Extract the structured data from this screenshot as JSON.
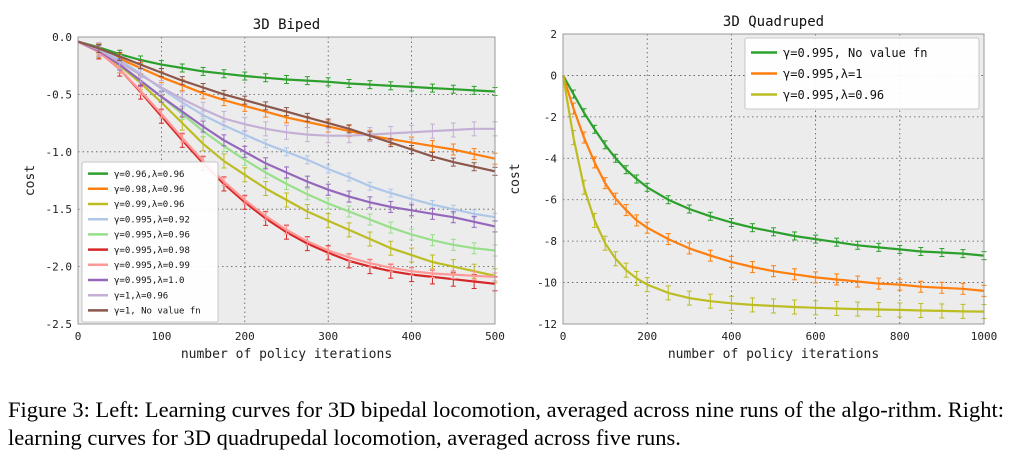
{
  "chart_data": [
    {
      "type": "line",
      "title": "3D Biped",
      "xlabel": "number of policy iterations",
      "ylabel": "cost",
      "xlim": [
        0,
        500
      ],
      "ylim": [
        -2.5,
        0.0
      ],
      "xticks": [
        "0",
        "100",
        "200",
        "300",
        "400",
        "500"
      ],
      "yticks": [
        "0.0",
        "-0.5",
        "-1.0",
        "-1.5",
        "-2.0",
        "-2.5"
      ],
      "grid": true,
      "legend_position": "lower-left",
      "x": [
        0,
        25,
        50,
        75,
        100,
        125,
        150,
        175,
        200,
        225,
        250,
        275,
        300,
        325,
        350,
        375,
        400,
        425,
        450,
        475,
        500
      ],
      "series": [
        {
          "name": "γ=0.96,λ=0.96",
          "color": "#2ca02c",
          "values": [
            -0.04,
            -0.09,
            -0.15,
            -0.2,
            -0.24,
            -0.27,
            -0.3,
            -0.32,
            -0.34,
            -0.355,
            -0.37,
            -0.38,
            -0.39,
            -0.405,
            -0.415,
            -0.425,
            -0.435,
            -0.445,
            -0.455,
            -0.465,
            -0.475
          ]
        },
        {
          "name": "γ=0.98,λ=0.96",
          "color": "#ff7f0e",
          "values": [
            -0.04,
            -0.1,
            -0.19,
            -0.27,
            -0.35,
            -0.42,
            -0.49,
            -0.55,
            -0.6,
            -0.65,
            -0.7,
            -0.74,
            -0.78,
            -0.82,
            -0.86,
            -0.89,
            -0.92,
            -0.95,
            -0.98,
            -1.02,
            -1.06
          ]
        },
        {
          "name": "γ=0.99,λ=0.96",
          "color": "#bcbd22",
          "values": [
            -0.04,
            -0.12,
            -0.25,
            -0.4,
            -0.57,
            -0.75,
            -0.93,
            -1.08,
            -1.2,
            -1.32,
            -1.42,
            -1.52,
            -1.6,
            -1.68,
            -1.76,
            -1.84,
            -1.9,
            -1.96,
            -2.0,
            -2.04,
            -2.08
          ]
        },
        {
          "name": "γ=0.995,λ=0.92",
          "color": "#aec7e8",
          "values": [
            -0.04,
            -0.1,
            -0.2,
            -0.32,
            -0.45,
            -0.57,
            -0.68,
            -0.77,
            -0.85,
            -0.93,
            -1.0,
            -1.07,
            -1.15,
            -1.22,
            -1.3,
            -1.36,
            -1.41,
            -1.46,
            -1.5,
            -1.54,
            -1.57
          ]
        },
        {
          "name": "γ=0.995,λ=0.96",
          "color": "#98df8a",
          "values": [
            -0.04,
            -0.12,
            -0.24,
            -0.38,
            -0.52,
            -0.67,
            -0.82,
            -0.95,
            -1.07,
            -1.18,
            -1.28,
            -1.37,
            -1.45,
            -1.52,
            -1.59,
            -1.66,
            -1.72,
            -1.77,
            -1.81,
            -1.84,
            -1.86
          ]
        },
        {
          "name": "γ=0.995,λ=0.98",
          "color": "#d62728",
          "values": [
            -0.04,
            -0.13,
            -0.28,
            -0.48,
            -0.69,
            -0.9,
            -1.1,
            -1.28,
            -1.44,
            -1.58,
            -1.7,
            -1.8,
            -1.88,
            -1.95,
            -2.0,
            -2.04,
            -2.07,
            -2.09,
            -2.11,
            -2.13,
            -2.15
          ]
        },
        {
          "name": "γ=0.995,λ=0.99",
          "color": "#ff9896",
          "values": [
            -0.04,
            -0.13,
            -0.28,
            -0.47,
            -0.67,
            -0.88,
            -1.08,
            -1.26,
            -1.42,
            -1.56,
            -1.68,
            -1.78,
            -1.86,
            -1.92,
            -1.97,
            -2.01,
            -2.04,
            -2.06,
            -2.07,
            -2.08,
            -2.09
          ]
        },
        {
          "name": "γ=0.995,λ=1.0",
          "color": "#9467bd",
          "values": [
            -0.04,
            -0.12,
            -0.24,
            -0.38,
            -0.52,
            -0.65,
            -0.78,
            -0.9,
            -1.0,
            -1.1,
            -1.18,
            -1.26,
            -1.33,
            -1.39,
            -1.44,
            -1.48,
            -1.51,
            -1.54,
            -1.57,
            -1.61,
            -1.65
          ]
        },
        {
          "name": "γ=1,λ=0.96",
          "color": "#c5b0d5",
          "values": [
            -0.04,
            -0.11,
            -0.22,
            -0.33,
            -0.44,
            -0.54,
            -0.63,
            -0.71,
            -0.76,
            -0.8,
            -0.83,
            -0.85,
            -0.86,
            -0.86,
            -0.85,
            -0.84,
            -0.83,
            -0.82,
            -0.81,
            -0.8,
            -0.8
          ]
        },
        {
          "name": "γ=1, No value fn",
          "color": "#8c564b",
          "values": [
            -0.04,
            -0.1,
            -0.17,
            -0.24,
            -0.31,
            -0.38,
            -0.44,
            -0.5,
            -0.55,
            -0.6,
            -0.65,
            -0.7,
            -0.75,
            -0.8,
            -0.86,
            -0.92,
            -0.98,
            -1.04,
            -1.09,
            -1.13,
            -1.17
          ]
        }
      ]
    },
    {
      "type": "line",
      "title": "3D Quadruped",
      "xlabel": "number of policy iterations",
      "ylabel": "cost",
      "xlim": [
        0,
        1000
      ],
      "ylim": [
        -12,
        2
      ],
      "xticks": [
        "0",
        "200",
        "400",
        "600",
        "800",
        "1000"
      ],
      "yticks": [
        "2",
        "0",
        "-2",
        "-4",
        "-6",
        "-8",
        "-10",
        "-12"
      ],
      "grid": true,
      "legend_position": "top-right",
      "x": [
        0,
        25,
        50,
        75,
        100,
        125,
        150,
        175,
        200,
        250,
        300,
        350,
        400,
        450,
        500,
        550,
        600,
        650,
        700,
        750,
        800,
        850,
        900,
        950,
        1000
      ],
      "series": [
        {
          "name": "γ=0.995, No value fn",
          "color": "#2ca02c",
          "values": [
            0.0,
            -0.9,
            -1.8,
            -2.6,
            -3.35,
            -4.0,
            -4.55,
            -5.0,
            -5.4,
            -6.0,
            -6.45,
            -6.8,
            -7.1,
            -7.35,
            -7.55,
            -7.75,
            -7.9,
            -8.05,
            -8.2,
            -8.3,
            -8.4,
            -8.5,
            -8.55,
            -8.6,
            -8.7
          ]
        },
        {
          "name": "γ=0.995,λ=1",
          "color": "#ff7f0e",
          "values": [
            0.0,
            -1.6,
            -3.0,
            -4.2,
            -5.2,
            -5.95,
            -6.5,
            -7.0,
            -7.35,
            -7.9,
            -8.35,
            -8.7,
            -9.0,
            -9.25,
            -9.45,
            -9.6,
            -9.75,
            -9.85,
            -9.95,
            -10.05,
            -10.1,
            -10.2,
            -10.25,
            -10.3,
            -10.4
          ]
        },
        {
          "name": "γ=0.995,λ=0.96",
          "color": "#bcbd22",
          "values": [
            0.0,
            -3.0,
            -5.4,
            -7.0,
            -8.1,
            -8.85,
            -9.4,
            -9.8,
            -10.1,
            -10.5,
            -10.75,
            -10.9,
            -11.0,
            -11.08,
            -11.13,
            -11.18,
            -11.22,
            -11.25,
            -11.28,
            -11.3,
            -11.32,
            -11.35,
            -11.37,
            -11.39,
            -11.4
          ]
        }
      ]
    }
  ],
  "caption": "Figure 3: Left: Learning curves for 3D bipedal locomotion, averaged across nine runs of the algo-rithm. Right: learning curves for 3D quadrupedal locomotion, averaged across five runs."
}
